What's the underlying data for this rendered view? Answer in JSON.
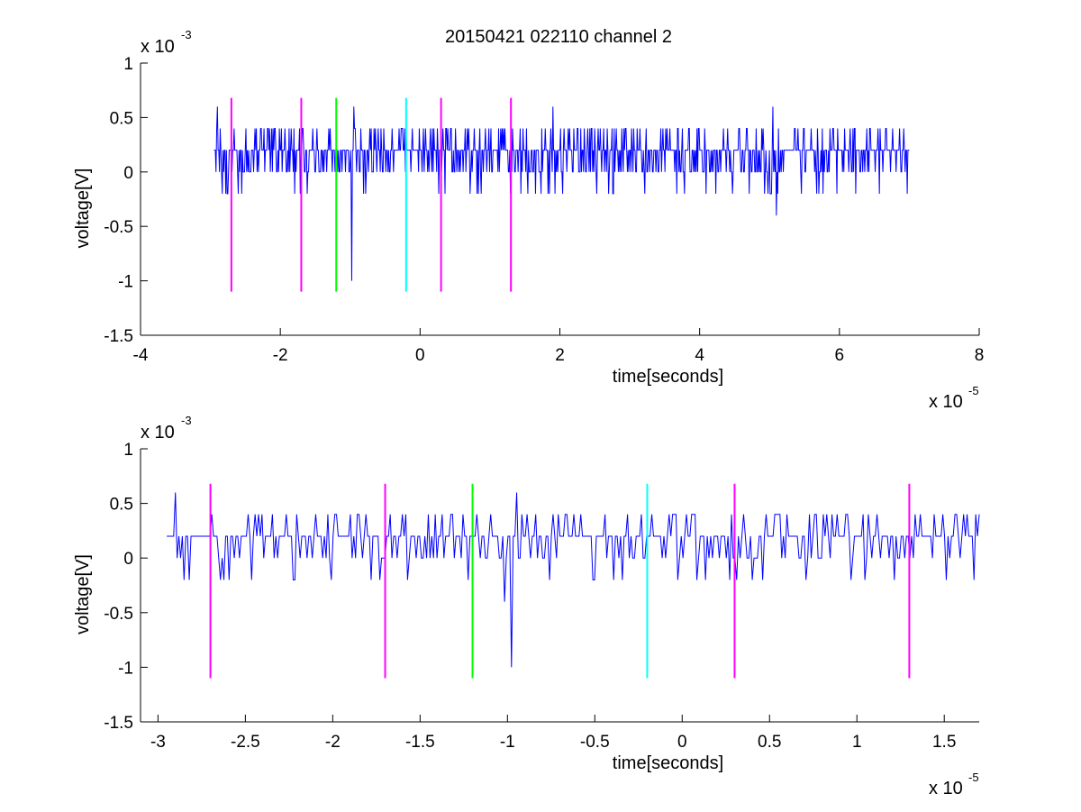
{
  "figure": {
    "title": "20150421 022110 channel 2",
    "background": "#ffffff"
  },
  "chart_data": [
    {
      "type": "line",
      "title": "20150421 022110 channel 2",
      "xlabel": "time[seconds]",
      "ylabel": "voltage[V]",
      "x_exponent_label": "x 10",
      "x_exponent": "-5",
      "y_exponent_label": "x 10",
      "y_exponent": "-3",
      "xlim": [
        -4e-05,
        8e-05
      ],
      "ylim": [
        -0.0015,
        0.001
      ],
      "x_ticks": [
        -4,
        -2,
        0,
        2,
        4,
        6,
        8
      ],
      "x_tick_labels": [
        "-4",
        "-2",
        "0",
        "2",
        "4",
        "6",
        "8"
      ],
      "y_ticks": [
        1,
        0.5,
        0,
        -0.5,
        -1,
        -1.5
      ],
      "y_tick_labels": [
        "1",
        "0.5",
        "0",
        "-0.5",
        "-1",
        "-1.5"
      ],
      "grid": false,
      "series": [
        {
          "color": "#0000ff",
          "x_range": [
            -2.95e-05,
            7e-05
          ],
          "samples": 1000,
          "quantization_step": 0.0002,
          "values_base": [
            0.0,
            0.0002,
            0.0004
          ],
          "notable_points": [
            {
              "x": -2.9e-05,
              "y": 0.0006
            },
            {
              "x": -9.8e-06,
              "y": -0.001
            },
            {
              "x": -9.5e-06,
              "y": 0.0006
            },
            {
              "x": 1.9e-05,
              "y": 0.0006
            },
            {
              "x": 5.05e-05,
              "y": 0.0006
            },
            {
              "x": 5.1e-05,
              "y": -0.0004
            }
          ]
        }
      ],
      "markers": [
        {
          "x": -2.7e-05,
          "color": "#ff00ff",
          "y_range": [
            -0.0011,
            0.00068
          ]
        },
        {
          "x": -1.7e-05,
          "color": "#ff00ff",
          "y_range": [
            -0.0011,
            0.00068
          ]
        },
        {
          "x": -1.2e-05,
          "color": "#00ff00",
          "y_range": [
            -0.0011,
            0.00068
          ]
        },
        {
          "x": -2e-06,
          "color": "#00ffff",
          "y_range": [
            -0.0011,
            0.00068
          ]
        },
        {
          "x": 3e-06,
          "color": "#ff00ff",
          "y_range": [
            -0.0011,
            0.00068
          ]
        },
        {
          "x": 1.3e-05,
          "color": "#ff00ff",
          "y_range": [
            -0.0011,
            0.00068
          ]
        }
      ]
    },
    {
      "type": "line",
      "title": "",
      "xlabel": "time[seconds]",
      "ylabel": "voltage[V]",
      "x_exponent_label": "x 10",
      "x_exponent": "-5",
      "y_exponent_label": "x 10",
      "y_exponent": "-3",
      "xlim": [
        -3.1e-05,
        1.7e-05
      ],
      "ylim": [
        -0.0015,
        0.001
      ],
      "x_ticks": [
        -3,
        -2.5,
        -2,
        -1.5,
        -1,
        -0.5,
        0,
        0.5,
        1,
        1.5
      ],
      "x_tick_labels": [
        "-3",
        "-2.5",
        "-2",
        "-1.5",
        "-1",
        "-0.5",
        "0",
        "0.5",
        "1",
        "1.5"
      ],
      "y_ticks": [
        1,
        0.5,
        0,
        -0.5,
        -1,
        -1.5
      ],
      "y_tick_labels": [
        "1",
        "0.5",
        "0",
        "-0.5",
        "-1",
        "-1.5"
      ],
      "grid": false,
      "series": [
        {
          "color": "#0000ff",
          "x_range": [
            -2.95e-05,
            1.7e-05
          ],
          "samples": 470,
          "quantization_step": 0.0002,
          "values_base": [
            0.0,
            0.0002,
            0.0004
          ],
          "notable_points": [
            {
              "x": -2.9e-05,
              "y": 0.0006
            },
            {
              "x": -2.82e-05,
              "y": -0.0002
            },
            {
              "x": -1.02e-05,
              "y": -0.0004
            },
            {
              "x": -9.8e-06,
              "y": -0.001
            },
            {
              "x": -9.5e-06,
              "y": 0.0006
            },
            {
              "x": 1.63e-05,
              "y": 0.0004
            },
            {
              "x": 1.67e-05,
              "y": -0.0002
            }
          ]
        }
      ],
      "markers": [
        {
          "x": -2.7e-05,
          "color": "#ff00ff",
          "y_range": [
            -0.0011,
            0.00068
          ]
        },
        {
          "x": -1.7e-05,
          "color": "#ff00ff",
          "y_range": [
            -0.0011,
            0.00068
          ]
        },
        {
          "x": -1.2e-05,
          "color": "#00ff00",
          "y_range": [
            -0.0011,
            0.00068
          ]
        },
        {
          "x": -2e-06,
          "color": "#00ffff",
          "y_range": [
            -0.0011,
            0.00068
          ]
        },
        {
          "x": 3e-06,
          "color": "#ff00ff",
          "y_range": [
            -0.0011,
            0.00068
          ]
        },
        {
          "x": 1.3e-05,
          "color": "#ff00ff",
          "y_range": [
            -0.0011,
            0.00068
          ]
        }
      ]
    }
  ]
}
